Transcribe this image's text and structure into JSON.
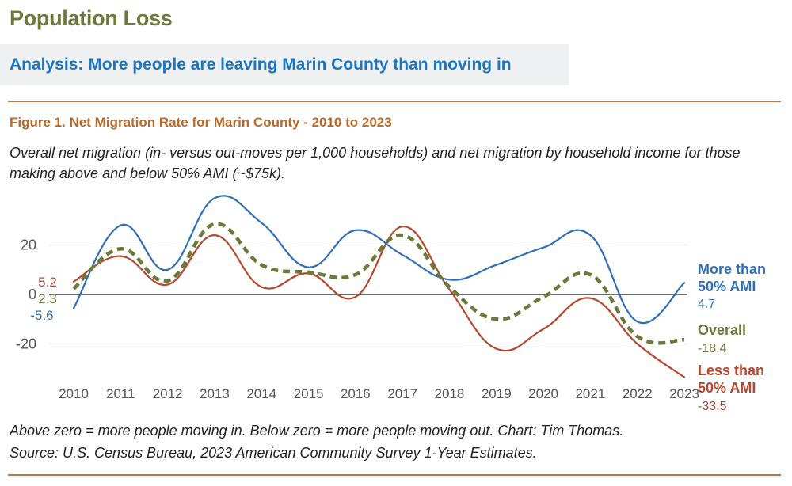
{
  "page": {
    "title": "Population Loss",
    "analysis": "Analysis: More people are leaving Marin County than moving in",
    "figure_title": "Figure 1. Net Migration Rate for Marin County - 2010 to 2023",
    "subtitle": "Overall net migration (in- versus out-moves per 1,000 households) and net migration by household income for those making above and below 50% AMI (~$75k).",
    "footnote_line1": "Above zero = more people moving in. Below zero = more people moving out. Chart: Tim Thomas.",
    "footnote_line2": "Source: U.S. Census Bureau, 2023 American Community Survey 1-Year Estimates."
  },
  "colors": {
    "more": "#2f6fb5",
    "overall": "#6b7a3a",
    "less": "#b5482e"
  },
  "chart_data": {
    "type": "line",
    "title": "Figure 1. Net Migration Rate for Marin County - 2010 to 2023",
    "xlabel": "",
    "ylabel": "",
    "ylim": [
      -28,
      42
    ],
    "y_ticks": [
      20,
      0,
      -20
    ],
    "y_tick_labels": [
      "20",
      "0",
      "-20"
    ],
    "x": [
      "2010",
      "2011",
      "2012",
      "2013",
      "2014",
      "2015",
      "2016",
      "2017",
      "2018",
      "2019",
      "2020",
      "2021",
      "2022",
      "2023"
    ],
    "series": [
      {
        "name": "More than 50% AMI",
        "label_line1": "More than",
        "label_line2": "50% AMI",
        "end_value_label": "4.7",
        "start_value_label": "-5.6",
        "style": "solid",
        "color": "#2f6fb5",
        "values": [
          -5.6,
          28.0,
          10.0,
          39.0,
          29.0,
          11.0,
          26.0,
          16.0,
          6.0,
          12.0,
          19.0,
          24.0,
          -11.0,
          4.7
        ]
      },
      {
        "name": "Overall",
        "label_line1": "Overall",
        "label_line2": "",
        "end_value_label": "-18.4",
        "start_value_label": "2.3",
        "style": "dashed",
        "color": "#6b7a3a",
        "values": [
          2.3,
          18.5,
          5.5,
          28.5,
          12.0,
          9.0,
          8.0,
          24.0,
          3.0,
          -10.0,
          -1.0,
          8.0,
          -17.0,
          -18.4
        ]
      },
      {
        "name": "Less than 50% AMI",
        "label_line1": "Less than",
        "label_line2": "50% AMI",
        "end_value_label": "-33.5",
        "start_value_label": "5.2",
        "style": "solid",
        "color": "#b5482e",
        "values": [
          5.2,
          15.5,
          4.0,
          24.0,
          3.0,
          8.5,
          -1.0,
          27.5,
          2.0,
          -22.0,
          -14.0,
          -1.5,
          -20.0,
          -33.5
        ]
      }
    ],
    "grid": true
  }
}
